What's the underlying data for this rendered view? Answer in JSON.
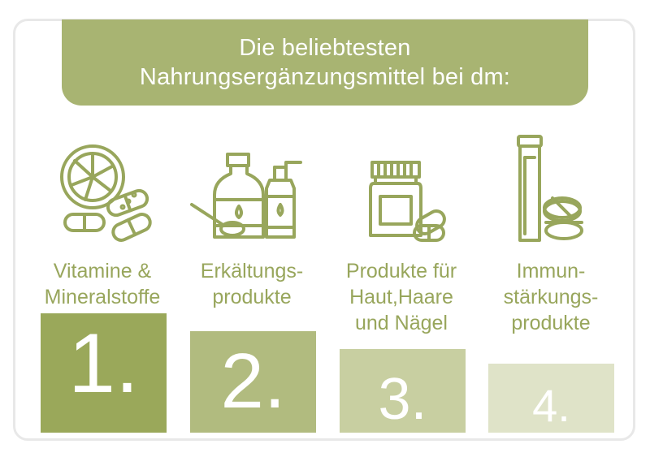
{
  "title": {
    "line1": "Die beliebtesten",
    "line2": "Nahrungsergänzungsmittel bei dm:"
  },
  "items": [
    {
      "label_line1": "Vitamine &",
      "label_line2": "Mineralstoffe",
      "label_line3": "",
      "rank": "1.",
      "icon": "lemon-capsules-icon",
      "color": "#9aa85a",
      "level": 1.0
    },
    {
      "label_line1": "Erkältungs-",
      "label_line2": "produkte",
      "label_line3": "",
      "rank": "2.",
      "icon": "syrup-bottles-spoon-icon",
      "color": "#b1bb7f",
      "level": 0.85
    },
    {
      "label_line1": "Produkte für",
      "label_line2": "Haut,Haare",
      "label_line3": "und Nägel",
      "rank": "3.",
      "icon": "supplement-jar-capsule-icon",
      "color": "#c8cfa1",
      "level": 0.7
    },
    {
      "label_line1": "Immun-",
      "label_line2": "stärkungs-",
      "label_line3": "produkte",
      "rank": "4.",
      "icon": "effervescent-tube-tablets-icon",
      "color": "#dfe3c8",
      "level": 0.58
    }
  ],
  "colors": {
    "accent": "#a8b472",
    "icon_stroke": "#98a65c",
    "label_text": "#98a65c"
  }
}
